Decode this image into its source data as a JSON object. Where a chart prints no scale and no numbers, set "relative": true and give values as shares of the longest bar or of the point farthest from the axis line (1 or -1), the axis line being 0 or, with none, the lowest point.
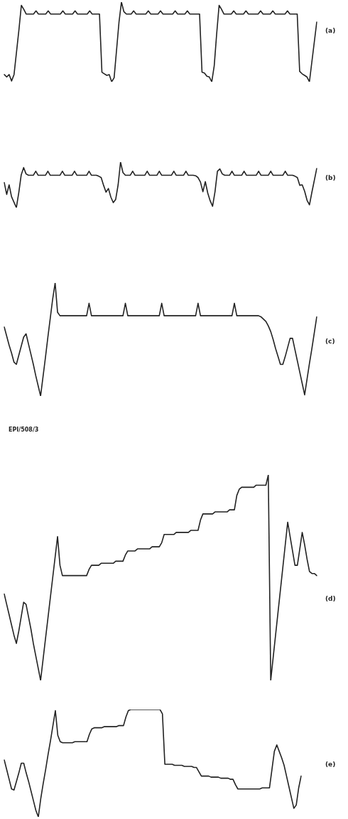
{
  "chart_data": [
    {
      "type": "line",
      "annotations": [
        "(a)"
      ],
      "relative": true,
      "tick_labels": false,
      "grid": false,
      "marker": "none",
      "categories": [
        null,
        null,
        null,
        null,
        null,
        null,
        null,
        null,
        null,
        null,
        null,
        null,
        null,
        null,
        null,
        null,
        null,
        null,
        null,
        null,
        null,
        null,
        null,
        null,
        null,
        null,
        null,
        null,
        null,
        null,
        null,
        null,
        null,
        null,
        null,
        null,
        null,
        null,
        null,
        null,
        null,
        null,
        null,
        null,
        null,
        null,
        null,
        null,
        null,
        null,
        null,
        null,
        null,
        null,
        null,
        null,
        null,
        null,
        null,
        null,
        null,
        null,
        null,
        null,
        null,
        null,
        null,
        null,
        null,
        null,
        null,
        null,
        null,
        null,
        null,
        null,
        null,
        null,
        null,
        null,
        null,
        null,
        null,
        null,
        null,
        null,
        null,
        null,
        null,
        null,
        null,
        null,
        null,
        null,
        null,
        null,
        null,
        null,
        null,
        null,
        null,
        null,
        null,
        null,
        null,
        null,
        null,
        null,
        null,
        null,
        null,
        null,
        null,
        null,
        null,
        null,
        null,
        null,
        null,
        null,
        null,
        null,
        null,
        null,
        null,
        null,
        null,
        null,
        null
      ],
      "series": [
        {
          "color": "#222222",
          "values": [
            0.09,
            0.06,
            0.09,
            0.01,
            0.09,
            0.37,
            0.65,
            0.96,
            0.91,
            0.85,
            0.85,
            0.85,
            0.85,
            0.89,
            0.85,
            0.85,
            0.85,
            0.85,
            0.89,
            0.85,
            0.85,
            0.85,
            0.85,
            0.85,
            0.89,
            0.85,
            0.85,
            0.85,
            0.85,
            0.89,
            0.85,
            0.85,
            0.85,
            0.85,
            0.85,
            0.89,
            0.85,
            0.85,
            0.85,
            0.85,
            0.12,
            0.1,
            0.08,
            0.09,
            0,
            0.05,
            0.4,
            0.75,
            1,
            0.88,
            0.85,
            0.85,
            0.85,
            0.89,
            0.85,
            0.85,
            0.85,
            0.85,
            0.85,
            0.89,
            0.85,
            0.85,
            0.85,
            0.85,
            0.89,
            0.85,
            0.85,
            0.85,
            0.85,
            0.85,
            0.89,
            0.85,
            0.85,
            0.85,
            0.85,
            0.89,
            0.85,
            0.85,
            0.85,
            0.85,
            0.85,
            0.12,
            0.11,
            0.07,
            0.06,
            0,
            0.2,
            0.6,
            0.96,
            0.91,
            0.85,
            0.85,
            0.85,
            0.85,
            0.89,
            0.85,
            0.85,
            0.85,
            0.85,
            0.89,
            0.85,
            0.85,
            0.85,
            0.85,
            0.85,
            0.89,
            0.85,
            0.85,
            0.85,
            0.85,
            0.89,
            0.85,
            0.85,
            0.85,
            0.85,
            0.85,
            0.89,
            0.85,
            0.85,
            0.85,
            0.85,
            0.13,
            0.1,
            0.08,
            0.06,
            0,
            0.25,
            0.5,
            0.75
          ]
        }
      ]
    },
    {
      "type": "line",
      "annotations": [
        "(b)"
      ],
      "relative": true,
      "tick_labels": false,
      "grid": false,
      "marker": "none",
      "categories": [
        null,
        null,
        null,
        null,
        null,
        null,
        null,
        null,
        null,
        null,
        null,
        null,
        null,
        null,
        null,
        null,
        null,
        null,
        null,
        null,
        null,
        null,
        null,
        null,
        null,
        null,
        null,
        null,
        null,
        null,
        null,
        null,
        null,
        null,
        null,
        null,
        null,
        null,
        null,
        null,
        null,
        null,
        null,
        null,
        null,
        null,
        null,
        null,
        null,
        null,
        null,
        null,
        null,
        null,
        null,
        null,
        null,
        null,
        null,
        null,
        null,
        null,
        null,
        null,
        null,
        null,
        null,
        null,
        null,
        null,
        null,
        null,
        null,
        null,
        null,
        null,
        null,
        null,
        null,
        null,
        null,
        null,
        null,
        null,
        null,
        null,
        null,
        null,
        null,
        null,
        null,
        null,
        null,
        null,
        null,
        null,
        null,
        null,
        null,
        null,
        null,
        null,
        null,
        null,
        null,
        null,
        null,
        null,
        null,
        null,
        null,
        null,
        null,
        null,
        null,
        null,
        null,
        null,
        null,
        null,
        null,
        null,
        null,
        null,
        null,
        null,
        null,
        null,
        null,
        null
      ],
      "series": [
        {
          "color": "#222222",
          "values": [
            0.55,
            0.29,
            0.5,
            0.24,
            0.12,
            0,
            0.33,
            0.72,
            0.88,
            0.74,
            0.71,
            0.71,
            0.71,
            0.8,
            0.71,
            0.71,
            0.71,
            0.71,
            0.8,
            0.71,
            0.71,
            0.71,
            0.71,
            0.71,
            0.8,
            0.71,
            0.71,
            0.71,
            0.71,
            0.8,
            0.71,
            0.71,
            0.71,
            0.71,
            0.71,
            0.8,
            0.71,
            0.71,
            0.71,
            0.69,
            0.66,
            0.49,
            0.34,
            0.42,
            0.23,
            0.11,
            0.18,
            0.5,
            1,
            0.77,
            0.71,
            0.71,
            0.71,
            0.8,
            0.71,
            0.71,
            0.71,
            0.71,
            0.71,
            0.8,
            0.71,
            0.71,
            0.71,
            0.71,
            0.8,
            0.71,
            0.71,
            0.71,
            0.71,
            0.71,
            0.8,
            0.71,
            0.71,
            0.71,
            0.71,
            0.8,
            0.71,
            0.71,
            0.71,
            0.7,
            0.66,
            0.56,
            0.35,
            0.57,
            0.32,
            0.15,
            0.03,
            0.35,
            0.8,
            0.85,
            0.74,
            0.71,
            0.71,
            0.71,
            0.8,
            0.71,
            0.71,
            0.71,
            0.71,
            0.8,
            0.71,
            0.71,
            0.71,
            0.71,
            0.71,
            0.8,
            0.71,
            0.71,
            0.71,
            0.71,
            0.8,
            0.71,
            0.71,
            0.71,
            0.71,
            0.71,
            0.8,
            0.71,
            0.71,
            0.71,
            0.69,
            0.66,
            0.49,
            0.5,
            0.36,
            0.16,
            0.06,
            0.34,
            0.6,
            0.86
          ]
        }
      ]
    },
    {
      "type": "line",
      "annotations": [
        "(c)"
      ],
      "relative": true,
      "tick_labels": false,
      "grid": false,
      "marker": "none",
      "categories": [
        null,
        null,
        null,
        null,
        null,
        null,
        null,
        null,
        null,
        null,
        null,
        null,
        null,
        null,
        null,
        null,
        null,
        null,
        null,
        null,
        null,
        null,
        null,
        null,
        null,
        null,
        null,
        null,
        null,
        null,
        null,
        null,
        null,
        null,
        null,
        null,
        null,
        null,
        null,
        null,
        null,
        null,
        null,
        null,
        null,
        null,
        null,
        null,
        null,
        null,
        null,
        null,
        null,
        null,
        null,
        null,
        null,
        null,
        null,
        null,
        null,
        null,
        null,
        null,
        null,
        null,
        null,
        null,
        null,
        null,
        null,
        null,
        null,
        null,
        null,
        null,
        null,
        null,
        null,
        null,
        null,
        null,
        null,
        null,
        null,
        null,
        null,
        null,
        null,
        null,
        null,
        null,
        null,
        null,
        null,
        null,
        null,
        null,
        null,
        null,
        null,
        null,
        null,
        null,
        null,
        null,
        null,
        null,
        null,
        null,
        null,
        null,
        null,
        null,
        null,
        null,
        null,
        null,
        null,
        null,
        null,
        null,
        null,
        null,
        null,
        null,
        null,
        null,
        null,
        null
      ],
      "series": [
        {
          "color": "#222222",
          "values": [
            0.61,
            0.53,
            0.45,
            0.38,
            0.3,
            0.28,
            0.36,
            0.44,
            0.52,
            0.55,
            0.46,
            0.37,
            0.28,
            0.18,
            0.09,
            0,
            0.17,
            0.34,
            0.52,
            0.69,
            0.86,
            1,
            0.74,
            0.71,
            0.71,
            0.71,
            0.71,
            0.71,
            0.71,
            0.71,
            0.71,
            0.71,
            0.71,
            0.71,
            0.71,
            0.82,
            0.71,
            0.71,
            0.71,
            0.71,
            0.71,
            0.71,
            0.71,
            0.71,
            0.71,
            0.71,
            0.71,
            0.71,
            0.71,
            0.71,
            0.82,
            0.71,
            0.71,
            0.71,
            0.71,
            0.71,
            0.71,
            0.71,
            0.71,
            0.71,
            0.71,
            0.71,
            0.71,
            0.71,
            0.71,
            0.82,
            0.71,
            0.71,
            0.71,
            0.71,
            0.71,
            0.71,
            0.71,
            0.71,
            0.71,
            0.71,
            0.71,
            0.71,
            0.71,
            0.71,
            0.82,
            0.71,
            0.71,
            0.71,
            0.71,
            0.71,
            0.71,
            0.71,
            0.71,
            0.71,
            0.71,
            0.71,
            0.71,
            0.71,
            0.71,
            0.82,
            0.71,
            0.71,
            0.71,
            0.71,
            0.71,
            0.71,
            0.71,
            0.71,
            0.71,
            0.71,
            0.7,
            0.68,
            0.66,
            0.62,
            0.57,
            0.5,
            0.42,
            0.35,
            0.28,
            0.28,
            0.35,
            0.43,
            0.51,
            0.51,
            0.41,
            0.31,
            0.21,
            0.11,
            0.01,
            0.15,
            0.29,
            0.42,
            0.56,
            0.7
          ]
        }
      ]
    },
    {
      "type": "line",
      "relative": true,
      "tick_labels": false,
      "grid": false,
      "marker": "none",
      "annotations": [
        "EPI/508/3",
        "(d)"
      ],
      "categories": [
        null,
        null,
        null,
        null,
        null,
        null,
        null,
        null,
        null,
        null,
        null,
        null,
        null,
        null,
        null,
        null,
        null,
        null,
        null,
        null,
        null,
        null,
        null,
        null,
        null,
        null,
        null,
        null,
        null,
        null,
        null,
        null,
        null,
        null,
        null,
        null,
        null,
        null,
        null,
        null,
        null,
        null,
        null,
        null,
        null,
        null,
        null,
        null,
        null,
        null,
        null,
        null,
        null,
        null,
        null,
        null,
        null,
        null,
        null,
        null,
        null,
        null,
        null,
        null,
        null,
        null,
        null,
        null,
        null,
        null,
        null,
        null,
        null,
        null,
        null,
        null,
        null,
        null,
        null,
        null,
        null,
        null,
        null,
        null,
        null,
        null,
        null,
        null,
        null,
        null,
        null,
        null,
        null,
        null,
        null,
        null,
        null,
        null,
        null,
        null,
        null,
        null,
        null,
        null,
        null,
        null,
        null,
        null,
        null,
        null,
        null,
        null,
        null,
        null,
        null,
        null,
        null,
        null,
        null,
        null,
        null,
        null,
        null,
        null,
        null,
        null,
        null,
        null,
        null,
        null
      ],
      "series": [
        {
          "color": "#222222",
          "values": [
            0.42,
            0.37,
            0.32,
            0.27,
            0.22,
            0.18,
            0.24,
            0.31,
            0.38,
            0.37,
            0.31,
            0.25,
            0.18,
            0.12,
            0.06,
            0,
            0.1,
            0.2,
            0.3,
            0.4,
            0.5,
            0.6,
            0.7,
            0.56,
            0.51,
            0.51,
            0.51,
            0.51,
            0.51,
            0.51,
            0.51,
            0.51,
            0.51,
            0.51,
            0.51,
            0.54,
            0.56,
            0.56,
            0.56,
            0.56,
            0.57,
            0.57,
            0.57,
            0.57,
            0.57,
            0.57,
            0.58,
            0.58,
            0.58,
            0.58,
            0.61,
            0.63,
            0.63,
            0.63,
            0.63,
            0.64,
            0.64,
            0.64,
            0.64,
            0.64,
            0.64,
            0.65,
            0.65,
            0.65,
            0.65,
            0.67,
            0.71,
            0.71,
            0.71,
            0.71,
            0.71,
            0.72,
            0.72,
            0.72,
            0.72,
            0.72,
            0.72,
            0.73,
            0.73,
            0.73,
            0.73,
            0.78,
            0.81,
            0.81,
            0.81,
            0.81,
            0.81,
            0.82,
            0.82,
            0.82,
            0.82,
            0.82,
            0.82,
            0.83,
            0.83,
            0.83,
            0.9,
            0.93,
            0.94,
            0.94,
            0.94,
            0.94,
            0.94,
            0.94,
            0.95,
            0.95,
            0.95,
            0.95,
            0.95,
            1,
            0,
            0.11,
            0.22,
            0.33,
            0.44,
            0.55,
            0.66,
            0.77,
            0.7,
            0.63,
            0.56,
            0.56,
            0.64,
            0.72,
            0.66,
            0.59,
            0.53,
            0.52,
            0.52,
            0.51
          ]
        }
      ]
    },
    {
      "type": "line",
      "annotations": [
        "(e)"
      ],
      "relative": true,
      "tick_labels": false,
      "grid": false,
      "marker": "none",
      "categories": [
        null,
        null,
        null,
        null,
        null,
        null,
        null,
        null,
        null,
        null,
        null,
        null,
        null,
        null,
        null,
        null,
        null,
        null,
        null,
        null,
        null,
        null,
        null,
        null,
        null,
        null,
        null,
        null,
        null,
        null,
        null,
        null,
        null,
        null,
        null,
        null,
        null,
        null,
        null,
        null,
        null,
        null,
        null,
        null,
        null,
        null,
        null,
        null,
        null,
        null,
        null,
        null,
        null,
        null,
        null,
        null,
        null,
        null,
        null,
        null,
        null,
        null,
        null,
        null,
        null,
        null,
        null,
        null,
        null,
        null,
        null,
        null,
        null,
        null,
        null,
        null,
        null,
        null,
        null,
        null,
        null,
        null,
        null,
        null,
        null,
        null,
        null,
        null,
        null,
        null,
        null,
        null,
        null,
        null,
        null,
        null,
        null,
        null,
        null,
        null,
        null,
        null,
        null,
        null,
        null,
        null,
        null,
        null,
        null,
        null,
        null,
        null,
        null,
        null,
        null,
        null,
        null,
        null,
        null,
        null,
        null,
        null,
        null
      ],
      "series": [
        {
          "color": "#222222",
          "values": [
            0.53,
            0.44,
            0.35,
            0.26,
            0.25,
            0.33,
            0.41,
            0.5,
            0.5,
            0.41,
            0.33,
            0.24,
            0.15,
            0.06,
            0,
            0.17,
            0.31,
            0.44,
            0.58,
            0.71,
            0.85,
            0.99,
            0.76,
            0.7,
            0.69,
            0.69,
            0.69,
            0.69,
            0.69,
            0.7,
            0.7,
            0.7,
            0.7,
            0.7,
            0.7,
            0.77,
            0.82,
            0.83,
            0.83,
            0.83,
            0.83,
            0.84,
            0.84,
            0.84,
            0.84,
            0.84,
            0.84,
            0.85,
            0.85,
            0.85,
            0.93,
            0.99,
            1,
            1,
            1,
            1,
            1,
            1,
            1,
            1,
            1,
            1,
            1,
            1,
            1,
            0.96,
            0.49,
            0.49,
            0.49,
            0.49,
            0.48,
            0.48,
            0.48,
            0.48,
            0.47,
            0.47,
            0.47,
            0.47,
            0.46,
            0.46,
            0.42,
            0.38,
            0.38,
            0.38,
            0.38,
            0.37,
            0.37,
            0.37,
            0.37,
            0.36,
            0.36,
            0.36,
            0.36,
            0.35,
            0.35,
            0.3,
            0.26,
            0.26,
            0.26,
            0.26,
            0.26,
            0.26,
            0.26,
            0.26,
            0.26,
            0.26,
            0.27,
            0.27,
            0.27,
            0.27,
            0.44,
            0.61,
            0.67,
            0.61,
            0.55,
            0.48,
            0.38,
            0.28,
            0.18,
            0.08,
            0.11,
            0.27,
            0.38
          ]
        }
      ]
    }
  ]
}
